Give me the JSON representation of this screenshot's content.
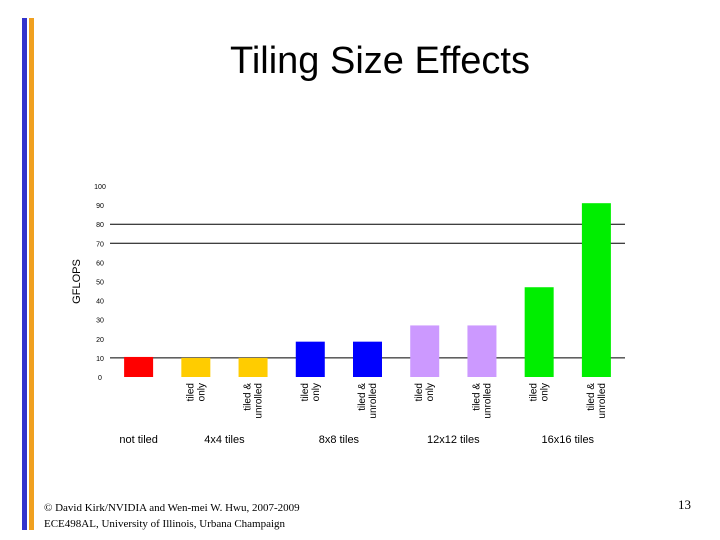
{
  "slide": {
    "title": "Tiling Size Effects",
    "footer_line1": "© David Kirk/NVIDIA and Wen-mei W. Hwu, 2007-2009",
    "footer_line2": "ECE498AL, University of Illinois, Urbana Champaign",
    "page_number": "13",
    "accent_colors": [
      "#3333cc",
      "#f0a020"
    ]
  },
  "chart_data": {
    "type": "bar",
    "title": "",
    "xlabel": "",
    "ylabel": "GFLOPS",
    "ylim": [
      0,
      100
    ],
    "yticks": [
      0,
      10,
      20,
      30,
      40,
      50,
      60,
      70,
      80,
      90,
      100
    ],
    "gridlines_at": [
      10,
      70,
      80
    ],
    "bars": [
      {
        "label": "",
        "value": 10.5,
        "color": "#ff0000"
      },
      {
        "label": "tiled\nonly",
        "value": 10,
        "color": "#ffcc00"
      },
      {
        "label": "tiled &\nunrolled",
        "value": 10,
        "color": "#ffcc00"
      },
      {
        "label": "tiled\nonly",
        "value": 18.5,
        "color": "#0000ff"
      },
      {
        "label": "tiled &\nunrolled",
        "value": 18.5,
        "color": "#0000ff"
      },
      {
        "label": "tiled\nonly",
        "value": 27,
        "color": "#cc99ff"
      },
      {
        "label": "tiled &\nunrolled",
        "value": 27,
        "color": "#cc99ff"
      },
      {
        "label": "tiled\nonly",
        "value": 47,
        "color": "#00ee00"
      },
      {
        "label": "tiled &\nunrolled",
        "value": 91,
        "color": "#00ee00"
      }
    ],
    "groups": [
      {
        "label": "not tiled",
        "bars": [
          0
        ]
      },
      {
        "label": "4x4 tiles",
        "bars": [
          1,
          2
        ]
      },
      {
        "label": "8x8 tiles",
        "bars": [
          3,
          4
        ]
      },
      {
        "label": "12x12 tiles",
        "bars": [
          5,
          6
        ]
      },
      {
        "label": "16x16 tiles",
        "bars": [
          7,
          8
        ]
      }
    ]
  }
}
